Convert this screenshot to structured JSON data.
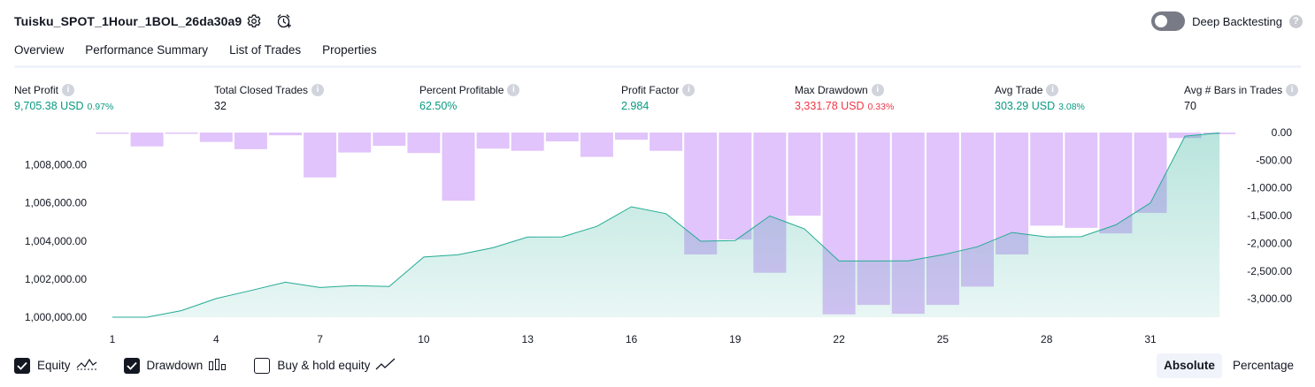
{
  "header": {
    "title": "Tuisku_SPOT_1Hour_1BOL_26da30a9",
    "deep_backtesting_label": "Deep Backtesting",
    "deep_backtesting_on": false,
    "help_glyph": "?"
  },
  "tabs": [
    {
      "label": "Overview",
      "active": true
    },
    {
      "label": "Performance Summary",
      "active": false
    },
    {
      "label": "List of Trades",
      "active": false
    },
    {
      "label": "Properties",
      "active": false
    }
  ],
  "metrics": [
    {
      "label": "Net Profit",
      "value": "9,705.38 USD",
      "pct": "0.97%",
      "color": "green"
    },
    {
      "label": "Total Closed Trades",
      "value": "32",
      "pct": "",
      "color": "dark"
    },
    {
      "label": "Percent Profitable",
      "value": "62.50%",
      "pct": "",
      "color": "green"
    },
    {
      "label": "Profit Factor",
      "value": "2.984",
      "pct": "",
      "color": "green"
    },
    {
      "label": "Max Drawdown",
      "value": "3,331.78 USD",
      "pct": "0.33%",
      "color": "red"
    },
    {
      "label": "Avg Trade",
      "value": "303.29 USD",
      "pct": "3.08%",
      "color": "green"
    },
    {
      "label": "Avg # Bars in Trades",
      "value": "70",
      "pct": "",
      "color": "dark"
    }
  ],
  "info_glyph": "i",
  "colors": {
    "equity_line": "#22ab94",
    "equity_fill": "#b7e3d9",
    "drawdown_bar": "#e1c4fb",
    "green": "#089981",
    "red": "#f23645"
  },
  "chart_data": {
    "type": "area",
    "x": [
      1,
      2,
      3,
      4,
      5,
      6,
      7,
      8,
      9,
      10,
      11,
      12,
      13,
      14,
      15,
      16,
      17,
      18,
      19,
      20,
      21,
      22,
      23,
      24,
      25,
      26,
      27,
      28,
      29,
      30,
      31,
      32,
      33
    ],
    "x_ticks": [
      "1",
      "4",
      "7",
      "10",
      "13",
      "16",
      "19",
      "22",
      "25",
      "28",
      "31"
    ],
    "series": [
      {
        "name": "Equity",
        "axis": "left",
        "values": [
          1000000,
          1000000,
          1000350,
          1000980,
          1001400,
          1001840,
          1001560,
          1001660,
          1001610,
          1003160,
          1003280,
          1003650,
          1004210,
          1004220,
          1004770,
          1005800,
          1005440,
          1003990,
          1004030,
          1005320,
          1004640,
          1002950,
          1002950,
          1002960,
          1003280,
          1003700,
          1004450,
          1004220,
          1004230,
          1004850,
          1006000,
          1009510,
          1009680
        ]
      },
      {
        "name": "Drawdown",
        "axis": "right",
        "type": "bar",
        "values": [
          -10,
          -250,
          -5,
          -170,
          -300,
          -50,
          -810,
          -360,
          -240,
          -370,
          -1230,
          -290,
          -330,
          -160,
          -440,
          -130,
          -330,
          -2200,
          -1930,
          -2530,
          -1500,
          -3280,
          -3110,
          -3270,
          -3110,
          -2780,
          -2200,
          -1680,
          -1720,
          -1820,
          -1450,
          -100,
          -30
        ]
      }
    ],
    "y_left_ticks": [
      "1,000,000.00",
      "1,002,000.00",
      "1,004,000.00",
      "1,006,000.00",
      "1,008,000.00"
    ],
    "y_right_ticks": [
      "0.00",
      "-500.00",
      "-1,000.00",
      "-1,500.00",
      "-2,000.00",
      "-2,500.00",
      "-3,000.00"
    ],
    "ylim_left": [
      1000000,
      1009700
    ],
    "ylim_right": [
      -3331.78,
      0
    ],
    "grid": false
  },
  "legend": [
    {
      "label": "Equity",
      "checked": true,
      "icon": "equity-line-icon"
    },
    {
      "label": "Drawdown",
      "checked": true,
      "icon": "drawdown-bars-icon"
    },
    {
      "label": "Buy & hold equity",
      "checked": false,
      "icon": "buy-hold-line-icon"
    }
  ],
  "scale": [
    {
      "label": "Absolute",
      "active": true
    },
    {
      "label": "Percentage",
      "active": false
    }
  ]
}
